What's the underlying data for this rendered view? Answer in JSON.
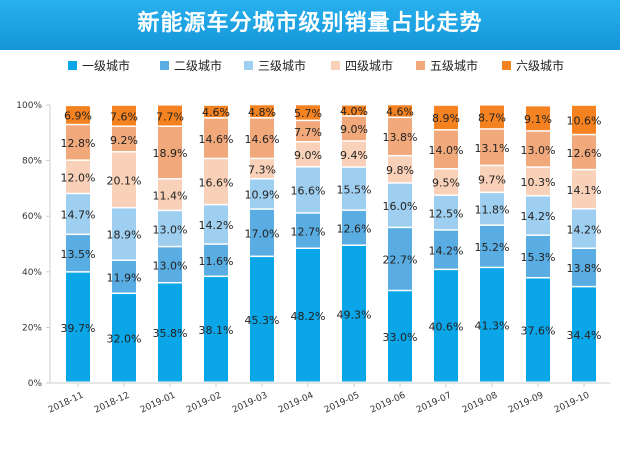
{
  "title": "新能源车分城市级别销量占比走势",
  "chart_data": {
    "type": "bar",
    "stacked": true,
    "title": "新能源车分城市级别销量占比走势",
    "categories": [
      "2018-11",
      "2018-12",
      "2019-01",
      "2019-02",
      "2019-03",
      "2019-04",
      "2019-05",
      "2019-06",
      "2019-07",
      "2019-08",
      "2019-09",
      "2019-10"
    ],
    "series": [
      {
        "name": "一级城市",
        "color": "#0aa6e8",
        "values": [
          39.7,
          32.0,
          35.8,
          38.1,
          45.3,
          48.2,
          49.3,
          33.0,
          40.6,
          41.3,
          37.6,
          34.4
        ]
      },
      {
        "name": "二级城市",
        "color": "#5aade2",
        "values": [
          13.5,
          11.9,
          13.0,
          11.6,
          17.0,
          12.7,
          12.6,
          22.7,
          14.2,
          15.2,
          15.3,
          13.8
        ]
      },
      {
        "name": "三级城市",
        "color": "#9fcff0",
        "values": [
          14.7,
          18.9,
          13.0,
          14.2,
          10.9,
          16.6,
          15.5,
          16.0,
          12.5,
          11.8,
          14.2,
          14.2
        ]
      },
      {
        "name": "四级城市",
        "color": "#f9d1b8",
        "values": [
          12.0,
          20.1,
          11.4,
          16.6,
          7.3,
          9.0,
          9.4,
          9.8,
          9.5,
          9.7,
          10.3,
          14.1
        ]
      },
      {
        "name": "五级城市",
        "color": "#f1a97b",
        "values": [
          12.8,
          9.2,
          18.9,
          14.6,
          14.6,
          7.7,
          9.0,
          13.8,
          14.0,
          13.1,
          13.0,
          12.6
        ]
      },
      {
        "name": "六级城市",
        "color": "#f58220",
        "values": [
          6.9,
          7.6,
          7.7,
          4.6,
          4.8,
          5.7,
          4.0,
          4.6,
          8.9,
          8.7,
          9.1,
          10.6
        ]
      }
    ],
    "ylim": [
      0,
      100
    ],
    "yticks": [
      "0%",
      "20%",
      "40%",
      "60%",
      "80%",
      "100%"
    ],
    "legend": "top",
    "grid": false
  }
}
